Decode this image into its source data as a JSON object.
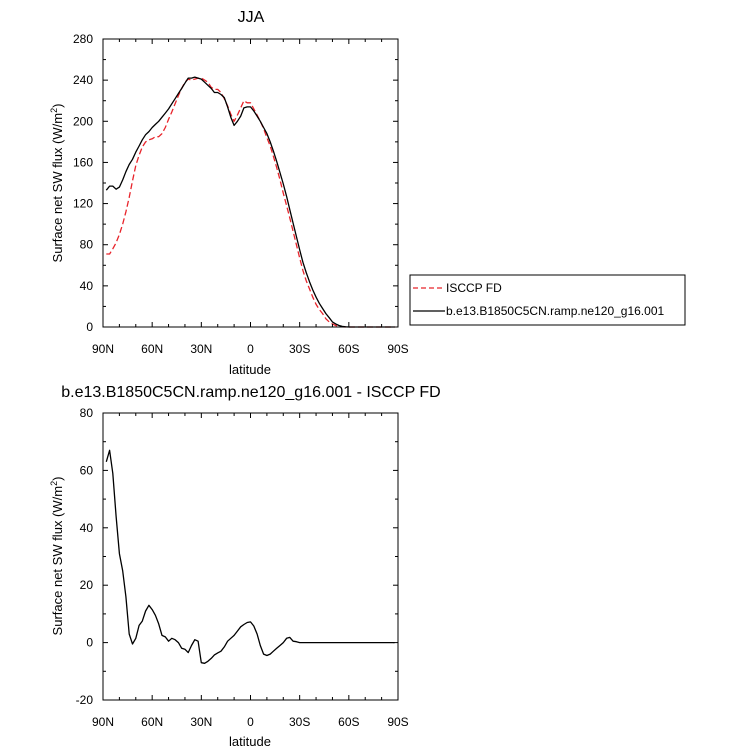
{
  "chart_data": [
    {
      "type": "line",
      "title": "JJA",
      "xlabel": "latitude",
      "ylabel": "Surface net SW flux (W/m",
      "ylabel_sup": "2",
      "ylabel_end": ")",
      "xlim": [
        90,
        -90
      ],
      "ylim": [
        0,
        280
      ],
      "x_ticks": [
        90,
        60,
        30,
        0,
        -30,
        -60,
        -90
      ],
      "x_tick_labels": [
        "90N",
        "60N",
        "30N",
        "0",
        "30S",
        "60S",
        "90S"
      ],
      "y_ticks": [
        0,
        40,
        80,
        120,
        160,
        200,
        240,
        280
      ],
      "y_tick_labels": [
        "0",
        "40",
        "80",
        "120",
        "160",
        "200",
        "240",
        "280"
      ],
      "legend_placement": "outside-right",
      "series": [
        {
          "name": "ISCCP FD",
          "color": "#e8242b",
          "dash": "dashed",
          "x": [
            88,
            86,
            84,
            82,
            80,
            78,
            76,
            74,
            72,
            70,
            68,
            66,
            64,
            62,
            60,
            58,
            56,
            54,
            52,
            50,
            48,
            46,
            44,
            42,
            40,
            38,
            36,
            34,
            32,
            30,
            28,
            26,
            24,
            22,
            20,
            18,
            16,
            14,
            12,
            10,
            8,
            6,
            4,
            2,
            0,
            -2,
            -4,
            -6,
            -8,
            -10,
            -12,
            -14,
            -16,
            -18,
            -20,
            -22,
            -24,
            -26,
            -28,
            -30,
            -32,
            -34,
            -36,
            -38,
            -40,
            -42,
            -44,
            -46,
            -48,
            -50,
            -52,
            -54,
            -56,
            -58,
            -60,
            -62,
            -64,
            -66,
            -68,
            -70,
            -72,
            -74,
            -76,
            -78,
            -80,
            -82,
            -84,
            -86,
            -88
          ],
          "y": [
            71,
            71,
            76,
            82,
            90,
            100,
            112,
            126,
            142,
            157,
            167,
            175,
            180,
            182,
            183,
            185,
            185,
            188,
            194,
            202,
            209,
            217,
            225,
            232,
            238,
            241,
            240,
            241,
            242,
            242,
            240,
            238,
            233,
            231,
            231,
            228,
            222,
            215,
            207,
            200,
            206,
            213,
            220,
            218,
            218,
            212,
            206,
            200,
            193,
            184,
            176,
            166,
            155,
            143,
            130,
            118,
            106,
            93,
            80,
            67,
            55,
            45,
            37,
            29,
            22,
            17,
            13,
            8,
            5,
            3,
            1.5,
            0.5,
            0.2,
            0,
            0,
            0,
            0,
            0,
            0,
            0,
            0,
            0,
            0,
            0,
            0,
            0,
            0,
            0,
            0
          ]
        },
        {
          "name": "b.e13.B1850C5CN.ramp.ne120_g16.001",
          "color": "#000000",
          "dash": "solid",
          "x": [
            88,
            86,
            84,
            82,
            80,
            78,
            76,
            74,
            72,
            70,
            68,
            66,
            64,
            62,
            60,
            58,
            56,
            54,
            52,
            50,
            48,
            46,
            44,
            42,
            40,
            38,
            36,
            34,
            32,
            30,
            28,
            26,
            24,
            22,
            20,
            18,
            16,
            14,
            12,
            10,
            8,
            6,
            4,
            2,
            0,
            -2,
            -4,
            -6,
            -8,
            -10,
            -12,
            -14,
            -16,
            -18,
            -20,
            -22,
            -24,
            -26,
            -28,
            -30,
            -32,
            -34,
            -36,
            -38,
            -40,
            -42,
            -44,
            -46,
            -48,
            -50,
            -52,
            -54,
            -56,
            -58,
            -60,
            -62,
            -64,
            -66,
            -68,
            -70,
            -72,
            -74,
            -76,
            -78,
            -80,
            -82,
            -84,
            -86,
            -88
          ],
          "y": [
            133,
            137,
            137,
            134,
            136,
            143,
            151,
            158,
            163,
            170,
            176,
            182,
            187,
            190,
            194,
            197,
            200,
            204,
            208,
            212,
            217,
            222,
            227,
            232,
            237,
            242,
            242,
            243,
            242,
            241,
            238,
            235,
            232,
            228,
            228,
            226,
            223,
            214,
            204,
            196,
            200,
            205,
            213,
            214,
            214,
            210,
            205,
            200,
            194,
            188,
            180,
            171,
            161,
            150,
            139,
            127,
            114,
            101,
            88,
            75,
            63,
            53,
            44,
            36,
            29,
            23,
            18,
            13,
            9,
            5,
            3,
            1.5,
            0.6,
            0.2,
            0,
            0,
            0,
            0,
            0,
            0,
            0,
            0,
            0,
            0,
            0,
            0,
            0,
            0,
            0
          ]
        }
      ]
    },
    {
      "type": "line",
      "title": "b.e13.B1850C5CN.ramp.ne120_g16.001 - ISCCP FD",
      "xlabel": "latitude",
      "ylabel": "Surface net SW flux (W/m",
      "ylabel_sup": "2",
      "ylabel_end": ")",
      "xlim": [
        90,
        -90
      ],
      "ylim": [
        -20,
        80
      ],
      "x_ticks": [
        90,
        60,
        30,
        0,
        -30,
        -60,
        -90
      ],
      "x_tick_labels": [
        "90N",
        "60N",
        "30N",
        "0",
        "30S",
        "60S",
        "90S"
      ],
      "y_ticks": [
        -20,
        0,
        20,
        40,
        60,
        80
      ],
      "y_tick_labels": [
        "-20",
        "0",
        "20",
        "40",
        "60",
        "80"
      ],
      "series": [
        {
          "name": "",
          "color": "#000000",
          "dash": "solid",
          "x": [
            88,
            86,
            84,
            82,
            80,
            78,
            76,
            74,
            72,
            70,
            68,
            66,
            64,
            62,
            60,
            58,
            56,
            54,
            52,
            50,
            48,
            46,
            44,
            42,
            40,
            38,
            36,
            34,
            32,
            30,
            28,
            26,
            24,
            22,
            20,
            18,
            16,
            14,
            12,
            10,
            8,
            6,
            4,
            2,
            0,
            -2,
            -4,
            -6,
            -8,
            -10,
            -12,
            -14,
            -16,
            -18,
            -20,
            -22,
            -24,
            -26,
            -28,
            -30,
            -32,
            -34,
            -36,
            -38,
            -40,
            -42,
            -44,
            -46,
            -48,
            -50,
            -52,
            -54,
            -56,
            -58,
            -60,
            -62,
            -64,
            -66,
            -68,
            -70,
            -72,
            -74,
            -76,
            -78,
            -80,
            -82,
            -84,
            -86,
            -88
          ],
          "y": [
            63,
            67,
            59,
            44,
            31,
            25,
            16,
            3,
            -0.5,
            1.5,
            6,
            7.5,
            11,
            13,
            11.5,
            9.5,
            6.5,
            2.5,
            2,
            0.5,
            1.5,
            1,
            0,
            -2,
            -2.3,
            -3.5,
            -1,
            1,
            0.5,
            -7,
            -7.2,
            -6.5,
            -5.5,
            -4.3,
            -3.6,
            -3,
            -1.5,
            0.5,
            1.5,
            2.5,
            4,
            5.5,
            6.3,
            7,
            7.2,
            5.8,
            3,
            -1,
            -4,
            -4.5,
            -4,
            -3,
            -2,
            -1,
            0,
            1.5,
            1.8,
            0.5,
            0.3,
            0,
            0,
            0,
            0,
            0,
            0,
            0,
            0,
            0,
            0,
            0,
            0,
            0,
            0,
            0,
            0,
            0,
            0,
            0,
            0,
            0,
            0,
            0,
            0,
            0,
            0,
            0,
            0,
            0,
            0
          ]
        }
      ]
    }
  ]
}
